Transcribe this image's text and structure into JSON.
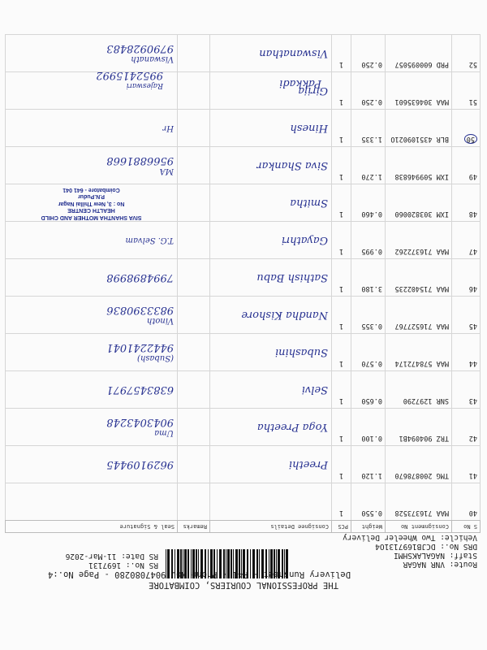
{
  "header": {
    "title": "THE PROFESSIONAL COURIERS, COIMBATORE",
    "subtitle": "Delivery Runsheet - P41 - Phone No.:9047080280 - Page No.:4",
    "route": "Route: VNR NAGAR",
    "staff": "Staff: NAGALAKSHMI",
    "drs_no": "DRS No.: DCJB1697131O4",
    "vehicle": "Vehicle: Two Wheeler Delivery",
    "rs_no": "RS No.: 1697131",
    "rs_date": "RS Date: 11-Mar-2026"
  },
  "table": {
    "columns": [
      "S No",
      "Consignment No",
      "Weight",
      "PCS",
      "Consignee Details",
      "Remarks",
      "Seal & Signature"
    ],
    "rows": [
      {
        "sno": "40",
        "consignment": "MAA 716373528",
        "weight": "0.550",
        "pcs": "1",
        "consignee": "",
        "signature": "",
        "phone": ""
      },
      {
        "sno": "41",
        "consignment": "TMG 200878670",
        "weight": "1.120",
        "pcs": "1",
        "consignee": "Preethi",
        "signature": "",
        "phone": "9629109445"
      },
      {
        "sno": "42",
        "consignment": "TRZ 904094B1",
        "weight": "0.100",
        "pcs": "1",
        "consignee": "Yoga Preetha",
        "signature": "Uma",
        "phone": "9043043248"
      },
      {
        "sno": "43",
        "consignment": "SNR 1297290",
        "weight": "0.650",
        "pcs": "1",
        "consignee": "Selvi",
        "signature": "",
        "phone": "6383457971"
      },
      {
        "sno": "44",
        "consignment": "MAA 578472174",
        "weight": "0.570",
        "pcs": "1",
        "consignee": "Subashini",
        "signature": "(Subash)",
        "phone": "9442241041"
      },
      {
        "sno": "45",
        "consignment": "MAA 716527767",
        "weight": "0.355",
        "pcs": "1",
        "consignee": "Nandha Kishore",
        "signature": "Vinoth",
        "phone": "9833390836"
      },
      {
        "sno": "46",
        "consignment": "MAA 715402235",
        "weight": "3.180",
        "pcs": "1",
        "consignee": "Sathish Babu",
        "signature": "",
        "phone": "7994898998"
      },
      {
        "sno": "47",
        "consignment": "MAA 716372262",
        "weight": "0.995",
        "pcs": "1",
        "consignee": "Gayathri",
        "signature": "T.G. Selvam",
        "phone": ""
      },
      {
        "sno": "48",
        "consignment": "IXM 303820060",
        "weight": "0.460",
        "pcs": "1",
        "consignee": "Smitha",
        "signature": "",
        "phone": "",
        "stamp": [
          "SIVA SHANTHA MOTHER AND CHILD",
          "HEALTH CENTRE",
          "No : 3, New Thillai Nagar",
          "P.N.Pudur",
          "Coimbatore - 641 041"
        ]
      },
      {
        "sno": "49",
        "consignment": "IXM 509946838",
        "weight": "1.270",
        "pcs": "1",
        "consignee": "Siva Shankar",
        "signature": "MA",
        "phone": "9566881668"
      },
      {
        "sno": "50",
        "consignment": "BLR 435109021O",
        "weight": "1.335",
        "pcs": "1",
        "consignee": "Hinesh",
        "signature": "Hr",
        "phone": ""
      },
      {
        "sno": "51",
        "consignment": "MAA 304635601",
        "weight": "0.250",
        "pcs": "1",
        "consignee": "Girija",
        "signature": "",
        "phone": ""
      },
      {
        "sno": "52",
        "consignment": "PRD 600095057",
        "weight": "0.250",
        "pcs": "1",
        "consignee": "Viswanathan",
        "signature": "Viswanath",
        "phone": "9790928483"
      }
    ],
    "footer_note": {
      "consignee": "Pakkadi",
      "signature": "Rajeswari",
      "phone": "9952415992"
    }
  },
  "colors": {
    "ink": "#263090",
    "print": "#222222"
  }
}
